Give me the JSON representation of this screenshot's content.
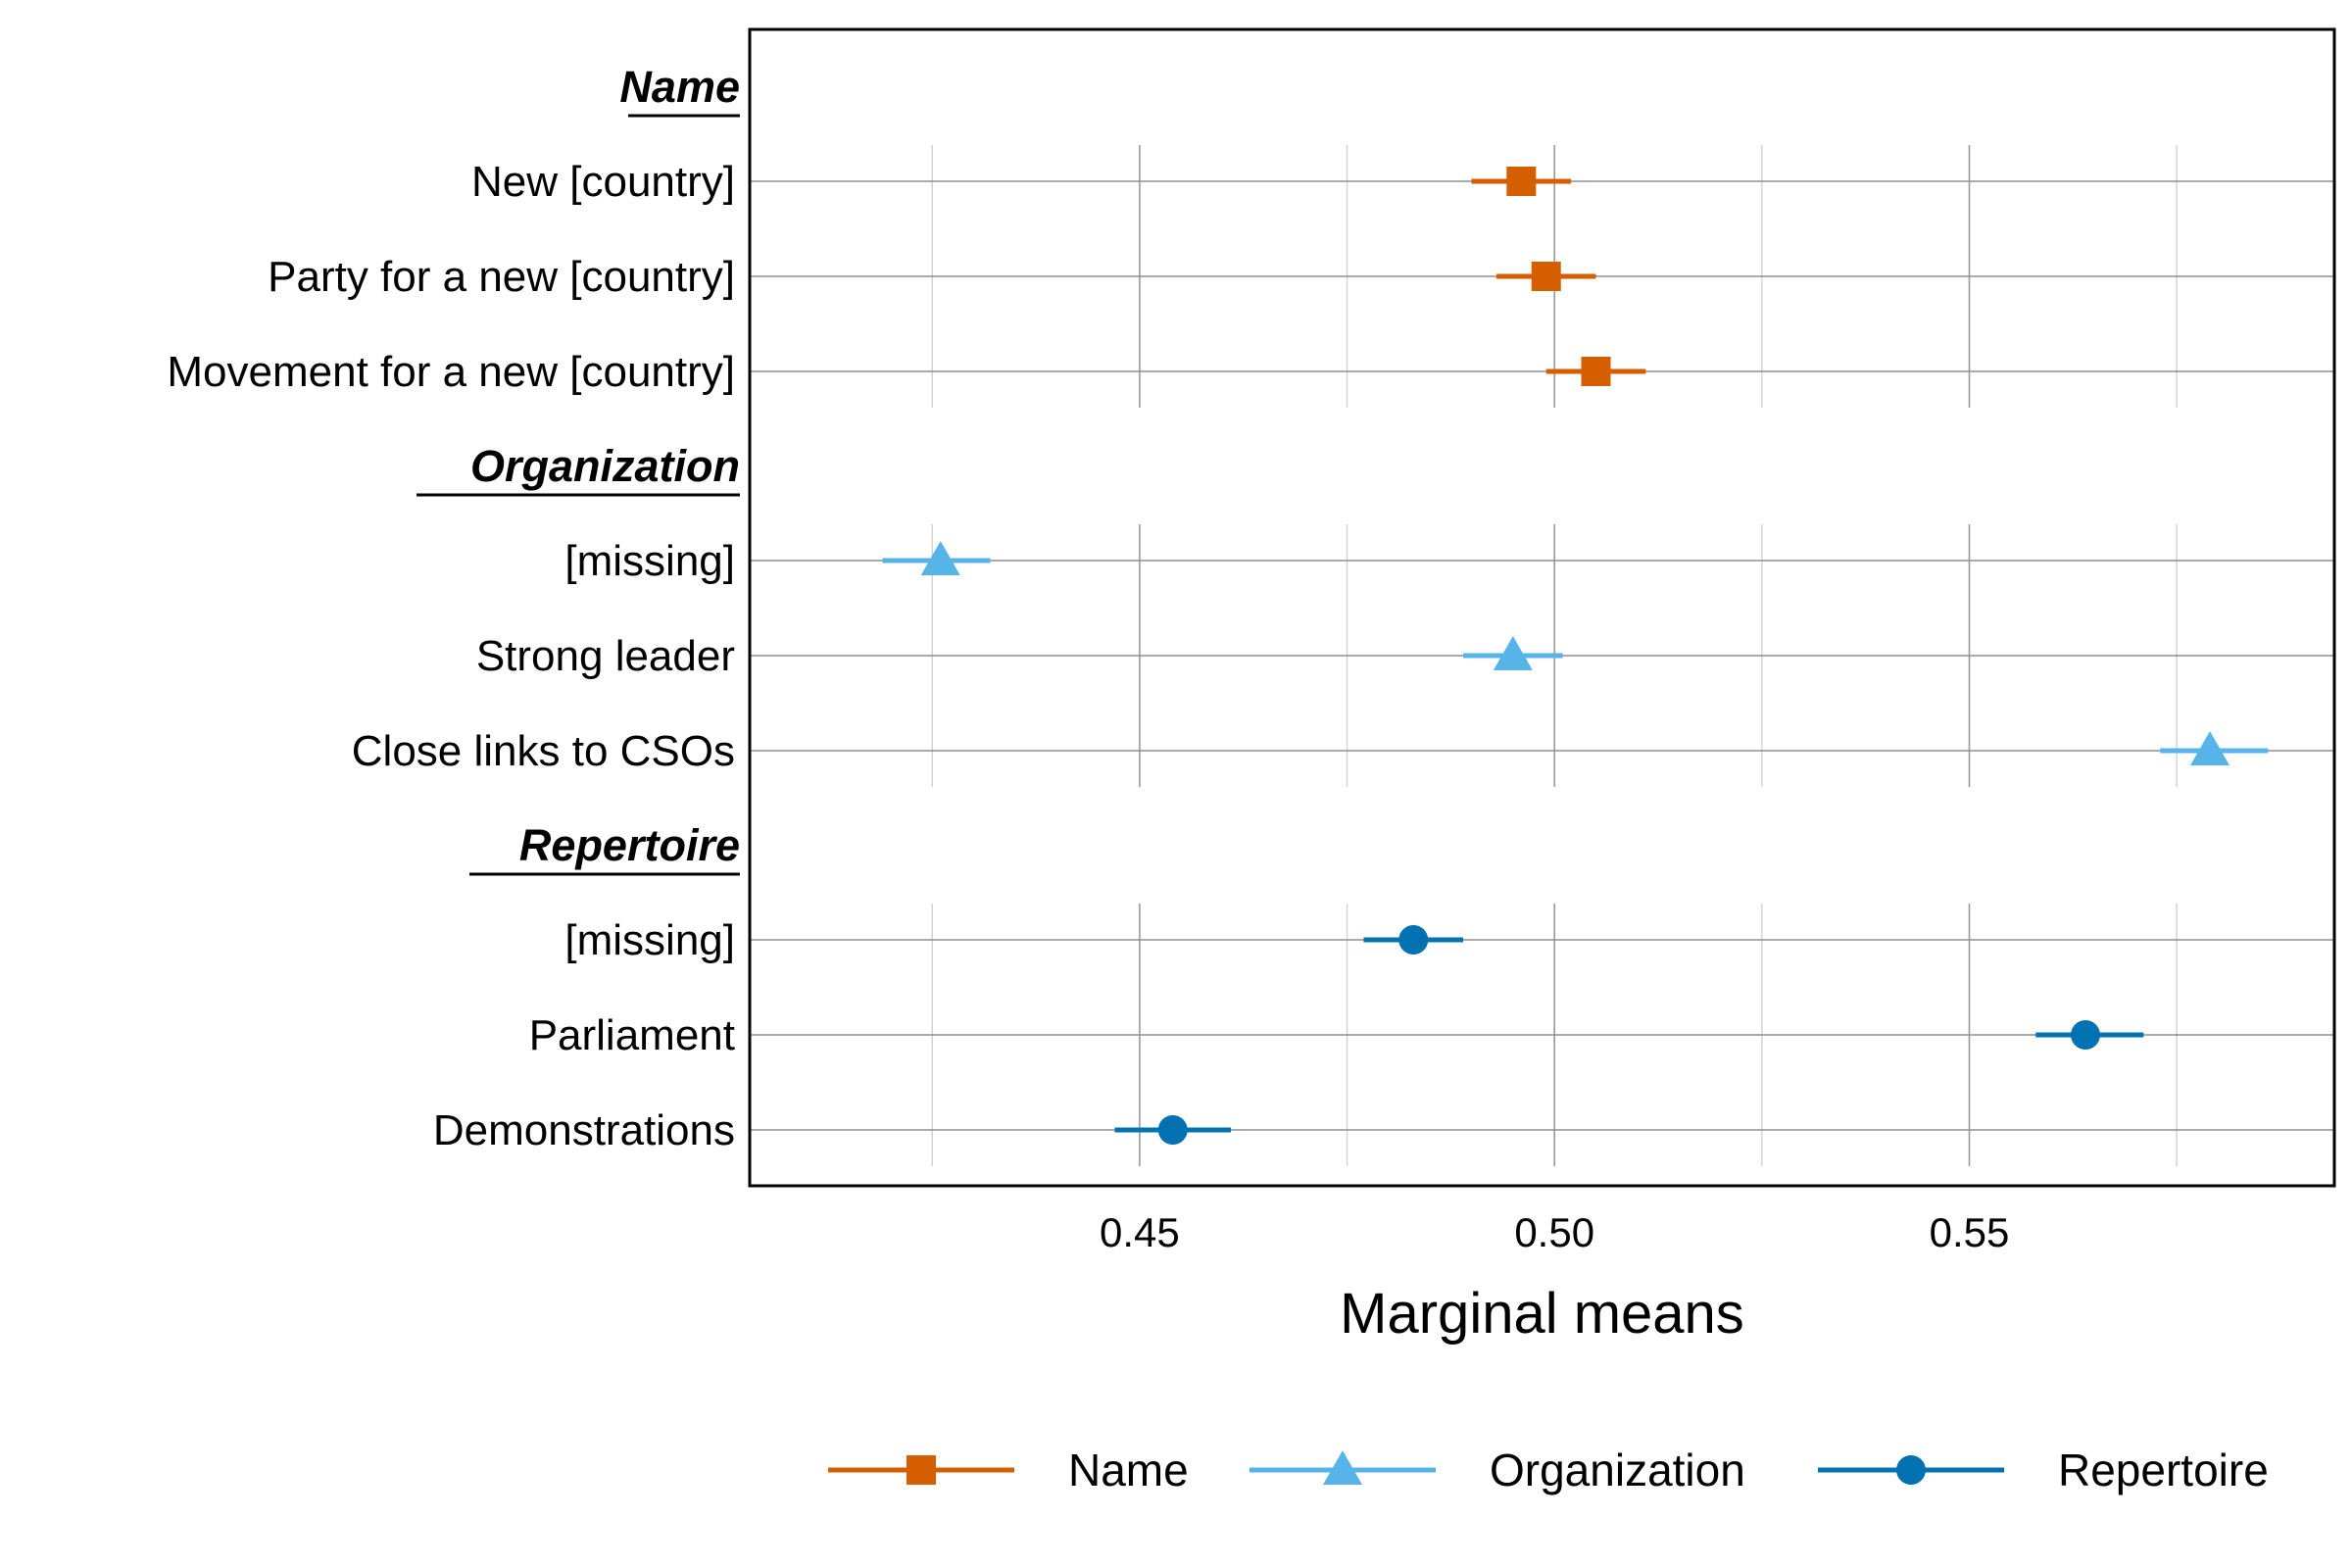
{
  "chart_data": {
    "type": "scatter",
    "subtype": "dot-and-whisker",
    "title": "",
    "xlabel": "Marginal means",
    "ylabel": "",
    "xlim": [
      0.403,
      0.594
    ],
    "xticks": [
      0.45,
      0.5,
      0.55
    ],
    "xtick_labels": [
      "0.45",
      "0.50",
      "0.55"
    ],
    "grid": true,
    "legend_position": "bottom",
    "groups": [
      {
        "name": "Name",
        "color": "#D55E00",
        "marker": "square",
        "items": [
          {
            "label": "New [country]",
            "estimate": 0.496,
            "lower": 0.49,
            "upper": 0.502
          },
          {
            "label": "Party for a new [country]",
            "estimate": 0.499,
            "lower": 0.493,
            "upper": 0.505
          },
          {
            "label": "Movement for a new [country]",
            "estimate": 0.505,
            "lower": 0.499,
            "upper": 0.511
          }
        ]
      },
      {
        "name": "Organization",
        "color": "#56B4E9",
        "marker": "triangle",
        "items": [
          {
            "label": "[missing]",
            "estimate": 0.426,
            "lower": 0.419,
            "upper": 0.432
          },
          {
            "label": "Strong leader",
            "estimate": 0.495,
            "lower": 0.489,
            "upper": 0.501
          },
          {
            "label": "Close links to CSOs",
            "estimate": 0.579,
            "lower": 0.573,
            "upper": 0.586
          }
        ]
      },
      {
        "name": "Repertoire",
        "color": "#0072B2",
        "marker": "circle",
        "items": [
          {
            "label": "[missing]",
            "estimate": 0.483,
            "lower": 0.477,
            "upper": 0.489
          },
          {
            "label": "Parliament",
            "estimate": 0.564,
            "lower": 0.558,
            "upper": 0.571
          },
          {
            "label": "Demonstrations",
            "estimate": 0.454,
            "lower": 0.447,
            "upper": 0.461
          }
        ]
      }
    ]
  }
}
